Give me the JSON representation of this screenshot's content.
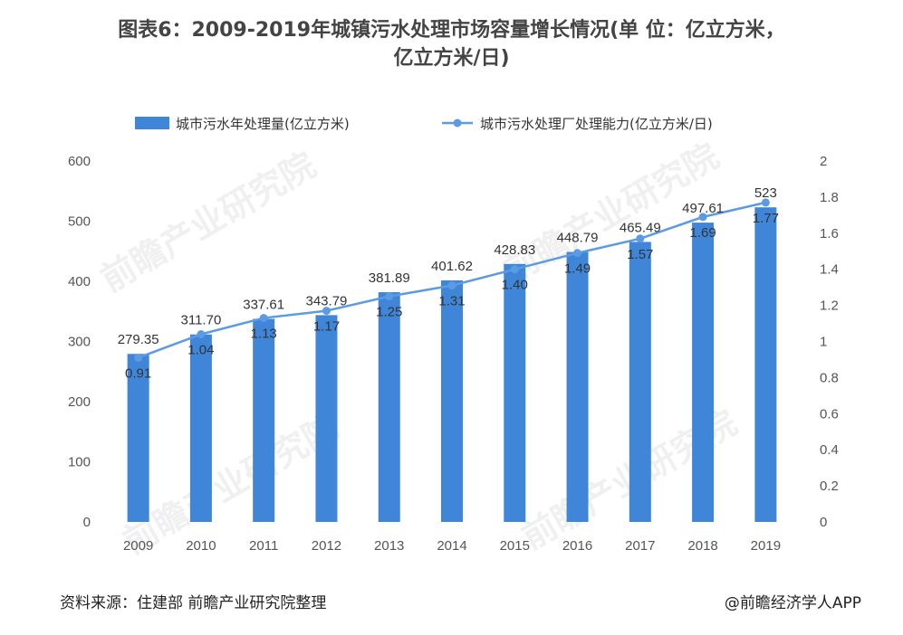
{
  "title_line1": "图表6：2009-2019年城镇污水处理市场容量增长情况(单 位：亿立方米，",
  "title_line2": "亿立方米/日)",
  "source": "资料来源：住建部 前瞻产业研究院整理",
  "credit": "@前瞻经济学人APP",
  "watermark": "前瞻产业研究院",
  "colors": {
    "bar": "#3f86d9",
    "line": "#5b9be3",
    "axis_text": "#555555"
  },
  "chart_data": {
    "type": "bar",
    "categories": [
      "2009",
      "2010",
      "2011",
      "2012",
      "2013",
      "2014",
      "2015",
      "2016",
      "2017",
      "2018",
      "2019"
    ],
    "series": [
      {
        "name": "城市污水年处理量(亿立方米)",
        "type": "bar",
        "axis": "left",
        "values": [
          279.35,
          311.7,
          337.61,
          343.79,
          381.89,
          401.62,
          428.83,
          448.79,
          465.49,
          497.61,
          523
        ],
        "labels": [
          "279.35",
          "311.70",
          "337.61",
          "343.79",
          "381.89",
          "401.62",
          "428.83",
          "448.79",
          "465.49",
          "497.61",
          "523"
        ]
      },
      {
        "name": "城市污水处理厂处理能力(亿立方米/日)",
        "type": "line",
        "axis": "right",
        "values": [
          0.91,
          1.04,
          1.13,
          1.17,
          1.25,
          1.31,
          1.4,
          1.49,
          1.57,
          1.69,
          1.77
        ],
        "labels": [
          "0.91",
          "1.04",
          "1.13",
          "1.17",
          "1.25",
          "1.31",
          "1.40",
          "1.49",
          "1.57",
          "1.69",
          "1.77"
        ]
      }
    ],
    "ylim_left": [
      0,
      600
    ],
    "ylim_right": [
      0,
      2
    ],
    "yticks_left": [
      "0",
      "100",
      "200",
      "300",
      "400",
      "500",
      "600"
    ],
    "yticks_right": [
      "0",
      "0.2",
      "0.4",
      "0.6",
      "0.8",
      "1",
      "1.2",
      "1.4",
      "1.6",
      "1.8",
      "2"
    ],
    "legend_position": "top",
    "grid": false
  }
}
